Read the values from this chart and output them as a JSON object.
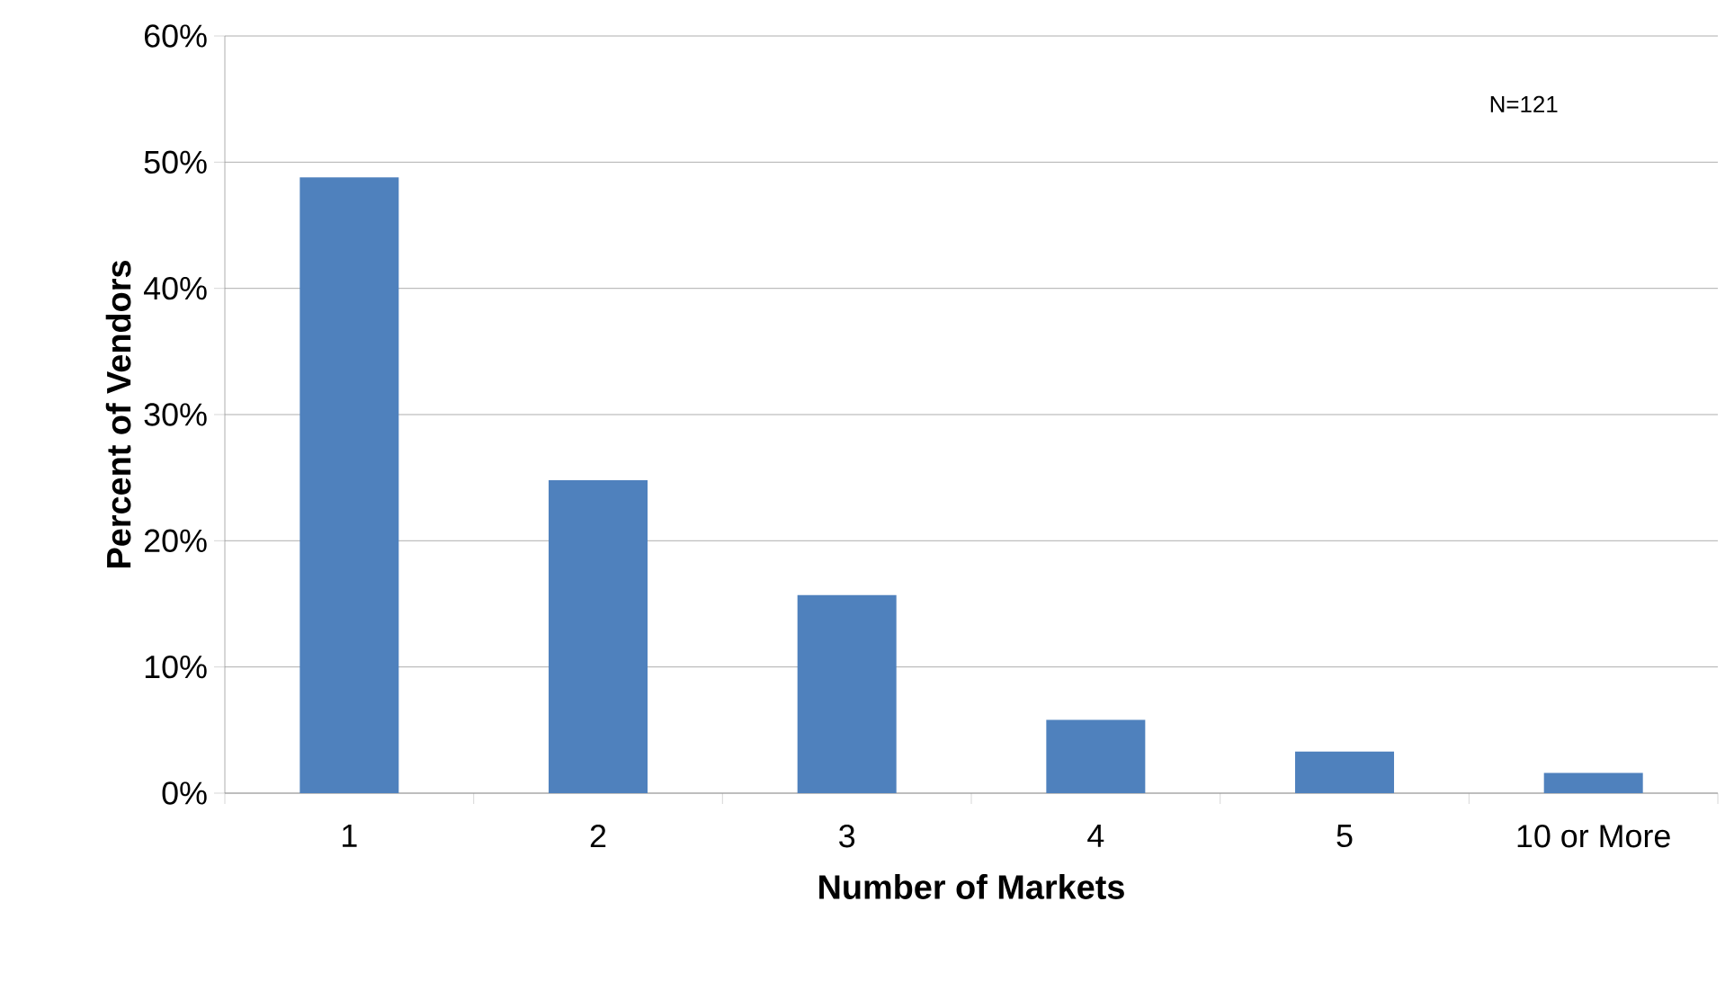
{
  "chart_data": {
    "type": "bar",
    "xlabel": "Number of Markets",
    "ylabel": "Percent of Vendors",
    "categories": [
      "1",
      "2",
      "3",
      "4",
      "5",
      "10 or More"
    ],
    "values": [
      48.8,
      24.8,
      15.7,
      5.8,
      3.3,
      1.6
    ],
    "color": "#4f81bd",
    "ylim": [
      0,
      60
    ],
    "yticks": [
      {
        "value": 0,
        "label": "0%"
      },
      {
        "value": 10,
        "label": "10%"
      },
      {
        "value": 20,
        "label": "20%"
      },
      {
        "value": 30,
        "label": "30%"
      },
      {
        "value": 40,
        "label": "40%"
      },
      {
        "value": 50,
        "label": "50%"
      },
      {
        "value": 60,
        "label": "60%"
      }
    ],
    "grid": "y",
    "annotations": [
      "N=121"
    ]
  }
}
